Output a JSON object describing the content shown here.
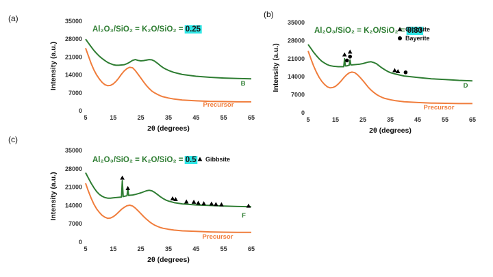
{
  "chart_data": [
    {
      "panel": "(a)",
      "type": "line",
      "title_prefix": "Al₂O₃/SiO₂ = K₂O/SiO₂ = ",
      "title_value": "0.25",
      "xlabel": "2θ (degrees)",
      "ylabel": "Intensity (a.u.)",
      "xlim": [
        5,
        65
      ],
      "ylim": [
        0,
        35000
      ],
      "x_ticks": [
        "5",
        "15",
        "25",
        "35",
        "45",
        "55",
        "65"
      ],
      "y_ticks": [
        "0",
        "7000",
        "14000",
        "21000",
        "28000",
        "35000"
      ],
      "series": [
        {
          "name": "B",
          "color": "#2e7d32",
          "x": [
            5,
            6,
            7,
            8,
            9,
            10,
            11,
            12,
            13,
            14,
            15,
            16,
            17,
            18,
            19,
            20,
            21,
            22,
            23,
            24,
            25,
            26,
            27,
            28,
            29,
            30,
            31,
            32,
            33,
            34,
            35,
            37,
            40,
            45,
            50,
            55,
            60,
            65
          ],
          "y": [
            28000,
            26500,
            25000,
            23600,
            22400,
            21300,
            20400,
            19600,
            18900,
            18400,
            18000,
            17800,
            17800,
            17900,
            18000,
            18400,
            19000,
            19700,
            20000,
            19700,
            19500,
            19600,
            19800,
            20000,
            19900,
            19400,
            18600,
            17700,
            16900,
            16300,
            15800,
            15000,
            14200,
            13500,
            13100,
            12800,
            12600,
            12500
          ]
        },
        {
          "name": "Precursor",
          "color": "#f07d3c",
          "x": [
            5,
            6,
            7,
            8,
            9,
            10,
            11,
            12,
            13,
            14,
            15,
            16,
            17,
            18,
            19,
            20,
            21,
            22,
            23,
            24,
            25,
            26,
            27,
            28,
            29,
            30,
            31,
            32,
            33,
            35,
            37,
            40,
            45,
            50,
            55,
            60,
            65
          ],
          "y": [
            24500,
            21500,
            18500,
            16000,
            14000,
            12400,
            11100,
            10200,
            9800,
            9900,
            10500,
            11500,
            12800,
            14300,
            15600,
            16500,
            17000,
            16800,
            15700,
            14300,
            12800,
            11300,
            9900,
            8700,
            7700,
            7000,
            6400,
            5900,
            5500,
            5000,
            4600,
            4200,
            3900,
            3700,
            3600,
            3500,
            3500
          ]
        }
      ],
      "markers": []
    },
    {
      "panel": "(b)",
      "type": "line",
      "title_prefix": "Al₂O₃/SiO₂ = K₂O/SiO₂ = ",
      "title_value": "0.33",
      "xlabel": "2θ (degrees)",
      "ylabel": "Intensity (a.u.)",
      "xlim": [
        5,
        65
      ],
      "ylim": [
        0,
        35000
      ],
      "x_ticks": [
        "5",
        "15",
        "25",
        "35",
        "45",
        "55",
        "65"
      ],
      "y_ticks": [
        "0",
        "7000",
        "14000",
        "21000",
        "28000",
        "35000"
      ],
      "series": [
        {
          "name": "D",
          "color": "#2e7d32",
          "x": [
            5,
            6,
            7,
            8,
            9,
            10,
            11,
            12,
            13,
            14,
            15,
            16,
            17,
            18,
            18.3,
            18.6,
            19,
            19.5,
            20,
            20.3,
            20.6,
            21,
            22,
            23,
            24,
            25,
            26,
            27,
            28,
            29,
            30,
            31,
            32,
            33,
            34,
            35,
            37,
            40,
            45,
            50,
            55,
            60,
            65
          ],
          "y": [
            26500,
            25000,
            23500,
            22200,
            21000,
            20000,
            19300,
            18700,
            18300,
            18100,
            18000,
            17900,
            17900,
            17900,
            21000,
            18200,
            18200,
            18300,
            18500,
            20500,
            18600,
            18600,
            18700,
            18800,
            18900,
            19100,
            19400,
            19700,
            19800,
            19500,
            19000,
            18200,
            17400,
            16700,
            16100,
            15600,
            15000,
            14300,
            13700,
            13200,
            12900,
            12600,
            12400
          ]
        },
        {
          "name": "Precursor",
          "color": "#f07d3c",
          "x": [
            5,
            6,
            7,
            8,
            9,
            10,
            11,
            12,
            13,
            14,
            15,
            16,
            17,
            18,
            19,
            20,
            21,
            22,
            23,
            24,
            25,
            26,
            27,
            28,
            29,
            30,
            31,
            32,
            33,
            35,
            37,
            40,
            45,
            50,
            55,
            60,
            65
          ],
          "y": [
            24000,
            21000,
            18200,
            15800,
            13800,
            12200,
            11000,
            10100,
            9700,
            9800,
            10300,
            11200,
            12300,
            13600,
            14700,
            15500,
            15800,
            15600,
            14800,
            13700,
            12500,
            11200,
            9900,
            8800,
            7900,
            7100,
            6500,
            6000,
            5600,
            5100,
            4700,
            4300,
            4000,
            3800,
            3700,
            3600,
            3600
          ]
        }
      ],
      "markers": [
        {
          "symbol": "triangle",
          "x": 18.3,
          "y": 22500
        },
        {
          "symbol": "triangle",
          "x": 20.3,
          "y": 23600
        },
        {
          "symbol": "circle",
          "x": 19.2,
          "y": 20300
        },
        {
          "symbol": "circle",
          "x": 20.3,
          "y": 21800
        },
        {
          "symbol": "triangle",
          "x": 36.6,
          "y": 16400
        },
        {
          "symbol": "triangle",
          "x": 37.8,
          "y": 16000
        },
        {
          "symbol": "circle",
          "x": 40.6,
          "y": 15700
        }
      ],
      "legend": [
        {
          "symbol": "triangle",
          "label": "Gibbsite"
        },
        {
          "symbol": "circle",
          "label": "Bayerite"
        }
      ]
    },
    {
      "panel": "(c)",
      "type": "line",
      "title_prefix": "Al₂O₃/SiO₂ = K₂O/SiO₂ = ",
      "title_value": "0.5",
      "xlabel": "2θ (degrees)",
      "ylabel": "Intensity (a.u.)",
      "xlim": [
        5,
        65
      ],
      "ylim": [
        0,
        35000
      ],
      "x_ticks": [
        "5",
        "15",
        "25",
        "35",
        "45",
        "55",
        "65"
      ],
      "y_ticks": [
        "0",
        "7000",
        "14000",
        "21000",
        "28000",
        "35000"
      ],
      "series": [
        {
          "name": "F",
          "color": "#2e7d32",
          "x": [
            5,
            6,
            7,
            8,
            9,
            10,
            11,
            12,
            13,
            14,
            15,
            16,
            17,
            18,
            18.3,
            18.6,
            19,
            20,
            20.3,
            20.6,
            21,
            22,
            23,
            24,
            25,
            26,
            27,
            28,
            29,
            30,
            31,
            32,
            33,
            34,
            35,
            37,
            40,
            45,
            50,
            55,
            60,
            65
          ],
          "y": [
            26500,
            24500,
            22500,
            20800,
            19300,
            18200,
            17500,
            17000,
            16800,
            16800,
            16900,
            17000,
            17100,
            17200,
            23500,
            17400,
            17500,
            17700,
            20500,
            17800,
            17900,
            18000,
            18200,
            18500,
            18800,
            19200,
            19600,
            19800,
            19600,
            19000,
            18200,
            17400,
            16700,
            16100,
            15700,
            15100,
            14600,
            14200,
            14000,
            13800,
            13600,
            13500
          ]
        },
        {
          "name": "Precursor",
          "color": "#f07d3c",
          "x": [
            5,
            6,
            7,
            8,
            9,
            10,
            11,
            12,
            13,
            14,
            15,
            16,
            17,
            18,
            19,
            20,
            21,
            22,
            23,
            24,
            25,
            26,
            27,
            28,
            29,
            30,
            31,
            32,
            33,
            35,
            37,
            40,
            45,
            50,
            55,
            60,
            65
          ],
          "y": [
            22500,
            19500,
            16800,
            14500,
            12700,
            11300,
            10200,
            9500,
            9100,
            9200,
            9700,
            10500,
            11500,
            12500,
            13300,
            13900,
            14100,
            13800,
            13000,
            12000,
            10900,
            9800,
            8800,
            7900,
            7100,
            6500,
            6000,
            5600,
            5300,
            4900,
            4600,
            4300,
            4100,
            3900,
            3800,
            3700,
            3700
          ]
        }
      ],
      "markers": [
        {
          "symbol": "triangle",
          "x": 18.3,
          "y": 24500
        },
        {
          "symbol": "triangle",
          "x": 20.3,
          "y": 20500
        },
        {
          "symbol": "triangle",
          "x": 36.5,
          "y": 16600
        },
        {
          "symbol": "triangle",
          "x": 37.6,
          "y": 16300
        },
        {
          "symbol": "triangle",
          "x": 41.5,
          "y": 15400
        },
        {
          "symbol": "triangle",
          "x": 44.2,
          "y": 15300
        },
        {
          "symbol": "triangle",
          "x": 45.8,
          "y": 14900
        },
        {
          "symbol": "triangle",
          "x": 47.8,
          "y": 14700
        },
        {
          "symbol": "triangle",
          "x": 50.6,
          "y": 14600
        },
        {
          "symbol": "triangle",
          "x": 52.2,
          "y": 14400
        },
        {
          "symbol": "triangle",
          "x": 54.2,
          "y": 14300
        },
        {
          "symbol": "triangle",
          "x": 64,
          "y": 13800
        }
      ],
      "legend": [
        {
          "symbol": "triangle",
          "label": "Gibbsite"
        }
      ]
    }
  ]
}
